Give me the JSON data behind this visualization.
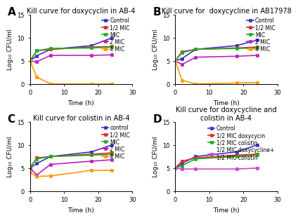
{
  "panel_A": {
    "title": "Kill curve for doxycyclin in AB-4",
    "label": "A",
    "time": [
      0,
      2,
      6,
      18,
      24
    ],
    "series": {
      "Control": {
        "color": "#3333CC",
        "marker": "s",
        "values": [
          5.0,
          6.1,
          7.5,
          8.3,
          10.0
        ]
      },
      "1/2 MIC": {
        "color": "#EE2222",
        "marker": "s",
        "values": [
          5.0,
          7.2,
          7.5,
          8.0,
          8.1
        ]
      },
      "MIC": {
        "color": "#22AA22",
        "marker": "s",
        "values": [
          5.0,
          7.2,
          7.7,
          7.8,
          8.0
        ]
      },
      "2 MIC": {
        "color": "#BB22BB",
        "marker": "s",
        "values": [
          5.0,
          4.8,
          6.2,
          6.2,
          6.3
        ]
      },
      "4 MIC": {
        "color": "#FF9900",
        "marker": "s",
        "values": [
          5.0,
          1.5,
          0.0,
          0.0,
          0.0
        ]
      }
    },
    "ylim": [
      0,
      15
    ],
    "yticks": [
      0,
      5,
      10,
      15
    ],
    "xlim": [
      0,
      30
    ],
    "xticks": [
      0,
      10,
      20,
      30
    ]
  },
  "panel_B": {
    "title": "Kill curve for  doxycycline in AB17978",
    "label": "B",
    "time": [
      0,
      2,
      6,
      18,
      24
    ],
    "series": {
      "Control": {
        "color": "#3333CC",
        "marker": "s",
        "values": [
          5.0,
          5.5,
          7.5,
          8.3,
          9.5
        ]
      },
      "1/2 MIC": {
        "color": "#EE2222",
        "marker": "s",
        "values": [
          5.0,
          7.0,
          7.5,
          7.8,
          8.0
        ]
      },
      "MIC": {
        "color": "#22AA22",
        "marker": "s",
        "values": [
          5.0,
          6.8,
          7.5,
          7.7,
          7.8
        ]
      },
      "2 MIC": {
        "color": "#BB22BB",
        "marker": "s",
        "values": [
          5.0,
          4.2,
          5.8,
          6.0,
          6.2
        ]
      },
      "4 MIC": {
        "color": "#FF9900",
        "marker": "s",
        "values": [
          5.0,
          0.8,
          0.0,
          0.2,
          0.3
        ]
      }
    },
    "ylim": [
      0,
      15
    ],
    "yticks": [
      0,
      5,
      10,
      15
    ],
    "xlim": [
      0,
      30
    ],
    "xticks": [
      0,
      10,
      20,
      30
    ]
  },
  "panel_C": {
    "title": "Kill curve for colistin in AB-4",
    "label": "C",
    "time": [
      0,
      2,
      6,
      18,
      24
    ],
    "series": {
      "control": {
        "color": "#3333CC",
        "marker": "s",
        "values": [
          5.0,
          6.0,
          7.5,
          8.5,
          10.0
        ]
      },
      "1/2 MIC": {
        "color": "#EE2222",
        "marker": "s",
        "values": [
          5.0,
          7.2,
          7.5,
          8.0,
          8.3
        ]
      },
      "MIC": {
        "color": "#22AA22",
        "marker": "s",
        "values": [
          5.2,
          7.0,
          7.5,
          7.8,
          8.0
        ]
      },
      "2 MIC": {
        "color": "#BB22BB",
        "marker": "s",
        "values": [
          5.0,
          3.5,
          5.8,
          6.5,
          6.8
        ]
      },
      "4 MIC": {
        "color": "#FF9900",
        "marker": "s",
        "values": [
          4.0,
          3.2,
          3.3,
          4.5,
          4.5
        ]
      }
    },
    "ylim": [
      0,
      15
    ],
    "yticks": [
      0,
      5,
      10,
      15
    ],
    "xlim": [
      0,
      30
    ],
    "xticks": [
      0,
      10,
      20,
      30
    ]
  },
  "panel_D": {
    "title": "Kill curve for doxycycline and\ncolistin in AB-4",
    "label": "D",
    "time": [
      0,
      2,
      6,
      18,
      24
    ],
    "series": {
      "Control": {
        "color": "#3333CC",
        "marker": "s",
        "values": [
          5.0,
          6.0,
          7.5,
          8.5,
          10.0
        ]
      },
      "1/2 MIC doxycycin": {
        "color": "#EE2222",
        "marker": "s",
        "values": [
          5.0,
          6.5,
          7.2,
          7.8,
          8.0
        ]
      },
      "1/2 MIC colistin": {
        "color": "#22AA22",
        "marker": "s",
        "values": [
          5.0,
          5.5,
          7.0,
          7.5,
          7.8
        ]
      },
      "1/2 MIC doxycycline+\n1/2 MIC colistin": {
        "color": "#CC44CC",
        "marker": "s",
        "values": [
          5.0,
          4.8,
          4.8,
          4.8,
          5.0
        ]
      }
    },
    "ylim": [
      0,
      15
    ],
    "yticks": [
      0,
      5,
      10,
      15
    ],
    "xlim": [
      0,
      30
    ],
    "xticks": [
      0,
      10,
      20,
      30
    ]
  },
  "ylabel": "Log₁₀ CFU/ml",
  "xlabel": "Time (h)",
  "bg_color": "#ffffff",
  "linewidth": 1.2,
  "markersize": 3.5,
  "title_fontsize": 7,
  "axis_label_fontsize": 6.5,
  "tick_fontsize": 6,
  "legend_fontsize": 5.5
}
